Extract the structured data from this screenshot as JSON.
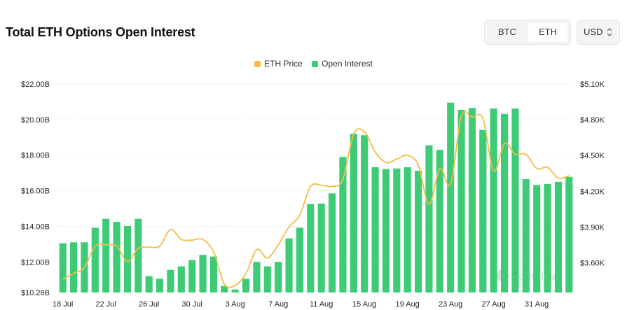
{
  "header": {
    "title": "Total ETH Options Open Interest",
    "asset_options": [
      "BTC",
      "ETH"
    ],
    "asset_selected": "ETH",
    "currency": "USD"
  },
  "watermark": "coinglass",
  "colors": {
    "bar": "#3dcb76",
    "price_line": "#f2be45",
    "grid": "#e9ebee"
  },
  "chart_data": {
    "type": "bar",
    "title": "Total ETH Options Open Interest",
    "legend": [
      "ETH Price",
      "Open Interest"
    ],
    "legend_position": "top-center",
    "categories": [
      "18 Jul",
      "19 Jul",
      "20 Jul",
      "21 Jul",
      "22 Jul",
      "23 Jul",
      "24 Jul",
      "25 Jul",
      "26 Jul",
      "27 Jul",
      "28 Jul",
      "29 Jul",
      "30 Jul",
      "31 Jul",
      "1 Aug",
      "2 Aug",
      "3 Aug",
      "4 Aug",
      "5 Aug",
      "6 Aug",
      "7 Aug",
      "8 Aug",
      "9 Aug",
      "10 Aug",
      "11 Aug",
      "12 Aug",
      "13 Aug",
      "14 Aug",
      "15 Aug",
      "16 Aug",
      "17 Aug",
      "18 Aug",
      "19 Aug",
      "20 Aug",
      "21 Aug",
      "22 Aug",
      "23 Aug",
      "24 Aug",
      "25 Aug",
      "26 Aug",
      "27 Aug",
      "28 Aug",
      "29 Aug",
      "30 Aug",
      "31 Aug",
      "1 Sep",
      "2 Sep",
      "3 Sep"
    ],
    "x_tick_labels": [
      "18 Jul",
      "22 Jul",
      "26 Jul",
      "30 Jul",
      "3 Aug",
      "7 Aug",
      "11 Aug",
      "15 Aug",
      "19 Aug",
      "23 Aug",
      "27 Aug",
      "31 Aug"
    ],
    "x_tick_every": 4,
    "series": [
      {
        "name": "Open Interest",
        "type": "bar",
        "axis": "left",
        "values": [
          13.05,
          13.1,
          13.1,
          13.92,
          14.42,
          14.25,
          14.02,
          14.42,
          11.2,
          11.05,
          11.55,
          11.75,
          12.1,
          12.4,
          12.3,
          10.65,
          10.45,
          11.05,
          12.0,
          11.75,
          12.0,
          13.32,
          13.92,
          15.25,
          15.28,
          15.85,
          17.9,
          19.2,
          19.12,
          17.32,
          17.22,
          17.25,
          17.32,
          17.12,
          18.55,
          18.3,
          20.95,
          20.55,
          20.65,
          19.42,
          20.62,
          20.32,
          20.62,
          16.65,
          16.32,
          16.38,
          16.5,
          16.78
        ]
      },
      {
        "name": "ETH Price",
        "type": "line",
        "axis": "right",
        "values": [
          3460,
          3510,
          3560,
          3740,
          3750,
          3740,
          3610,
          3720,
          3730,
          3740,
          3880,
          3795,
          3790,
          3795,
          3690,
          3420,
          3410,
          3510,
          3710,
          3640,
          3750,
          3900,
          4000,
          4240,
          4250,
          4240,
          4300,
          4680,
          4700,
          4530,
          4440,
          4470,
          4500,
          4420,
          4090,
          4390,
          4260,
          4830,
          4820,
          4810,
          4370,
          4600,
          4510,
          4510,
          4390,
          4400,
          4310,
          4330
        ]
      }
    ],
    "y_left": {
      "min": 10.28,
      "max": 22.0,
      "unit": "B",
      "ticks": [
        12,
        14,
        16,
        18,
        20,
        22
      ],
      "tick_labels": [
        "$10.28B",
        "$12.00B",
        "$14.00B",
        "$16.00B",
        "$18.00B",
        "$20.00B",
        "$22.00B"
      ]
    },
    "y_right": {
      "min": 3350,
      "max": 5100,
      "ticks": [
        3600,
        3900,
        4200,
        4500,
        4800,
        5100
      ],
      "tick_labels": [
        "$3.60K",
        "$3.90K",
        "$4.20K",
        "$4.50K",
        "$4.80K",
        "$5.10K"
      ]
    },
    "grid": true
  }
}
